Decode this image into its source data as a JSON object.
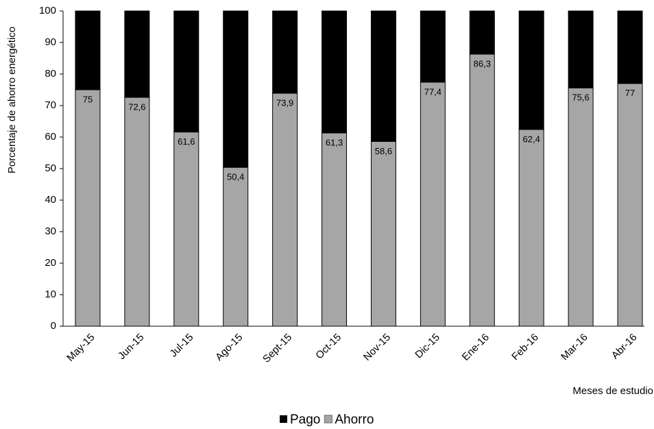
{
  "chart_data": {
    "type": "stacked-bar",
    "categories": [
      "May-15",
      "Jun-15",
      "Jul-15",
      "Ago-15",
      "Sept-15",
      "Oct-15",
      "Nov-15",
      "Dic-15",
      "Ene-16",
      "Feb-16",
      "Mar-16",
      "Abr-16"
    ],
    "series": [
      {
        "name": "Ahorro",
        "color": "#a6a6a6",
        "values": [
          75,
          72.6,
          61.6,
          50.4,
          73.9,
          61.3,
          58.6,
          77.4,
          86.3,
          62.4,
          75.6,
          77
        ],
        "value_labels": [
          "75",
          "72,6",
          "61,6",
          "50,4",
          "73,9",
          "61,3",
          "58,6",
          "77,4",
          "86,3",
          "62,4",
          "75,6",
          "77"
        ]
      },
      {
        "name": "Pago",
        "color": "#000000",
        "values": [
          25,
          27.4,
          38.4,
          49.6,
          26.1,
          38.7,
          41.4,
          22.6,
          13.7,
          37.6,
          24.4,
          23
        ]
      }
    ],
    "ylabel": "Porcentaje de ahorro energético",
    "xlabel": "Meses de estudio",
    "ylim": [
      0,
      100
    ],
    "yticks": [
      0,
      10,
      20,
      30,
      40,
      50,
      60,
      70,
      80,
      90,
      100
    ],
    "grid": false,
    "legend": "bottom"
  }
}
